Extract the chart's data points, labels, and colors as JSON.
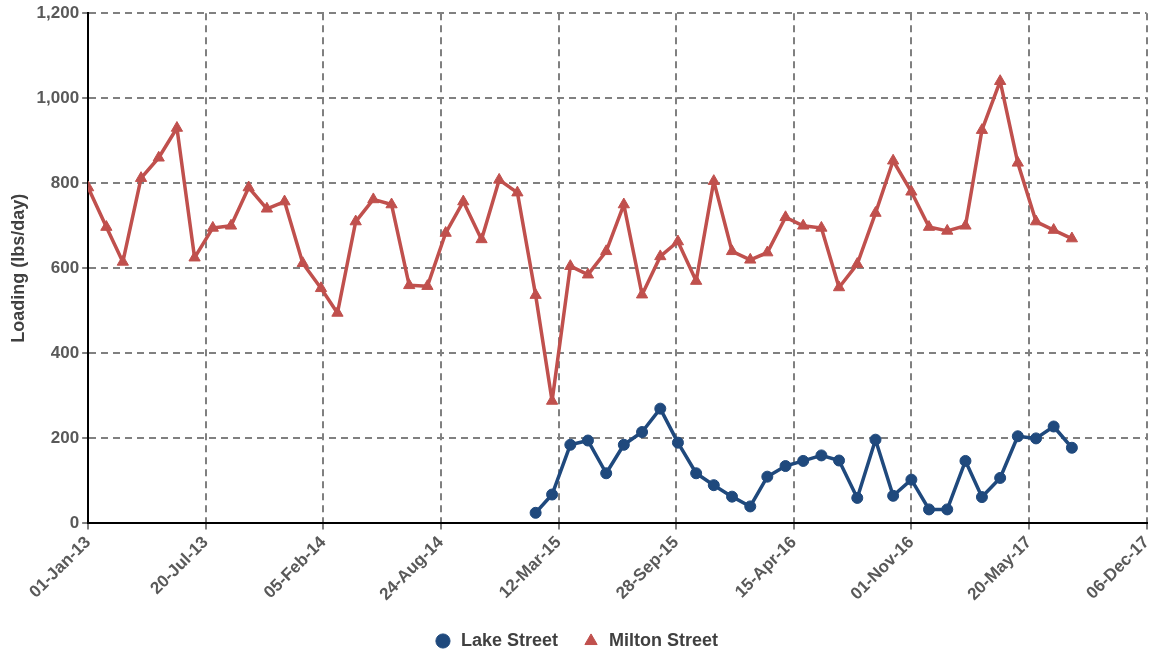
{
  "chart_data": {
    "type": "line",
    "ylabel": "Loading (lbs/day)",
    "grid": true,
    "legend": "bottom",
    "line_style": "solid",
    "ylim": [
      0,
      1200
    ],
    "yticks": [
      0,
      200,
      400,
      600,
      800,
      {
        "value": 1000,
        "label": "1,000"
      },
      {
        "value": 1200,
        "label": "1,200"
      }
    ],
    "xlim": [
      "2013-01-01",
      "2017-12-06"
    ],
    "xticks": [
      {
        "value": "2013-01-01",
        "label": "01-Jan-13"
      },
      {
        "value": "2013-07-20",
        "label": "20-Jul-13"
      },
      {
        "value": "2014-02-05",
        "label": "05-Feb-14"
      },
      {
        "value": "2014-08-24",
        "label": "24-Aug-14"
      },
      {
        "value": "2015-03-12",
        "label": "12-Mar-15"
      },
      {
        "value": "2015-09-28",
        "label": "28-Sep-15"
      },
      {
        "value": "2016-04-15",
        "label": "15-Apr-16"
      },
      {
        "value": "2016-11-01",
        "label": "01-Nov-16"
      },
      {
        "value": "2017-05-20",
        "label": "20-May-17"
      },
      {
        "value": "2017-12-06",
        "label": "06-Dec-17"
      }
    ],
    "series": [
      {
        "name": "Lake Street",
        "color": "#1f497d",
        "marker": "circle",
        "x": [
          "2015-02-01",
          "2015-03-01",
          "2015-04-01",
          "2015-05-01",
          "2015-06-01",
          "2015-07-01",
          "2015-08-01",
          "2015-09-01",
          "2015-10-01",
          "2015-11-01",
          "2015-12-01",
          "2016-01-01",
          "2016-02-01",
          "2016-03-01",
          "2016-04-01",
          "2016-05-01",
          "2016-06-01",
          "2016-07-01",
          "2016-08-01",
          "2016-09-01",
          "2016-10-01",
          "2016-11-01",
          "2016-12-01",
          "2017-01-01",
          "2017-02-01",
          "2017-03-01",
          "2017-04-01",
          "2017-05-01",
          "2017-06-01",
          "2017-07-01",
          "2017-08-01"
        ],
        "values": [
          25,
          68,
          185,
          195,
          118,
          185,
          215,
          270,
          190,
          118,
          90,
          63,
          40,
          110,
          135,
          147,
          160,
          148,
          60,
          197,
          65,
          103,
          33,
          33,
          147,
          62,
          107,
          205,
          200,
          228,
          178
        ]
      },
      {
        "name": "Milton Street",
        "color": "#c0504d",
        "marker": "triangle",
        "x": [
          "2013-01-01",
          "2013-02-01",
          "2013-03-01",
          "2013-04-01",
          "2013-05-01",
          "2013-06-01",
          "2013-07-01",
          "2013-08-01",
          "2013-09-01",
          "2013-10-01",
          "2013-11-01",
          "2013-12-01",
          "2014-01-01",
          "2014-02-01",
          "2014-03-01",
          "2014-04-01",
          "2014-05-01",
          "2014-06-01",
          "2014-07-01",
          "2014-08-01",
          "2014-09-01",
          "2014-10-01",
          "2014-11-01",
          "2014-12-01",
          "2015-01-01",
          "2015-02-01",
          "2015-03-01",
          "2015-04-01",
          "2015-05-01",
          "2015-06-01",
          "2015-07-01",
          "2015-08-01",
          "2015-09-01",
          "2015-10-01",
          "2015-11-01",
          "2015-12-01",
          "2016-01-01",
          "2016-02-01",
          "2016-03-01",
          "2016-04-01",
          "2016-05-01",
          "2016-06-01",
          "2016-07-01",
          "2016-08-01",
          "2016-09-01",
          "2016-10-01",
          "2016-11-01",
          "2016-12-01",
          "2017-01-01",
          "2017-02-01",
          "2017-03-01",
          "2017-04-01",
          "2017-05-01",
          "2017-06-01",
          "2017-07-01",
          "2017-08-01"
        ],
        "values": [
          790,
          697,
          615,
          812,
          860,
          930,
          625,
          695,
          700,
          790,
          740,
          757,
          612,
          553,
          495,
          710,
          762,
          750,
          560,
          558,
          683,
          757,
          668,
          808,
          778,
          537,
          288,
          605,
          585,
          640,
          750,
          538,
          628,
          663,
          570,
          805,
          640,
          620,
          637,
          720,
          700,
          695,
          555,
          610,
          730,
          853,
          780,
          697,
          688,
          700,
          925,
          1040,
          848,
          710,
          690,
          670
        ]
      }
    ]
  }
}
